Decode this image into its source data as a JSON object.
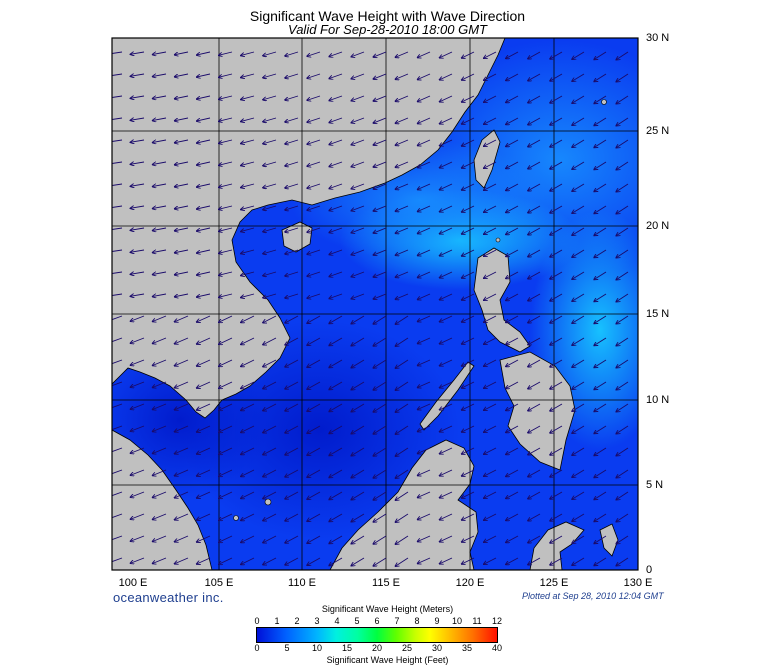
{
  "title": "Significant Wave Height with Wave Direction",
  "subtitle": "Valid For Sep-28-2010 18:00 GMT",
  "map": {
    "lon_labels": [
      "100 E",
      "105 E",
      "110 E",
      "115 E",
      "120 E",
      "125 E",
      "130 E"
    ],
    "lat_labels": [
      "30 N",
      "25 N",
      "20 N",
      "15 N",
      "10 N",
      "5 N",
      "0"
    ],
    "lon_range": [
      99,
      130
    ],
    "lat_range": [
      0,
      30
    ],
    "land_color": "#c0c0c0",
    "sea_base_color": "#0a3cf0",
    "wave_direction": "southwest"
  },
  "brand": "oceanweather inc.",
  "plotted": "Plotted at Sep 28, 2010 12:04 GMT",
  "legend": {
    "title_meters": "Significant Wave Height (Meters)",
    "title_feet": "Significant Wave Height (Feet)",
    "meters_ticks": [
      "0",
      "1",
      "2",
      "3",
      "4",
      "5",
      "6",
      "7",
      "8",
      "9",
      "10",
      "11",
      "12"
    ],
    "feet_ticks": [
      "0",
      "5",
      "10",
      "15",
      "20",
      "25",
      "30",
      "35",
      "40"
    ]
  }
}
